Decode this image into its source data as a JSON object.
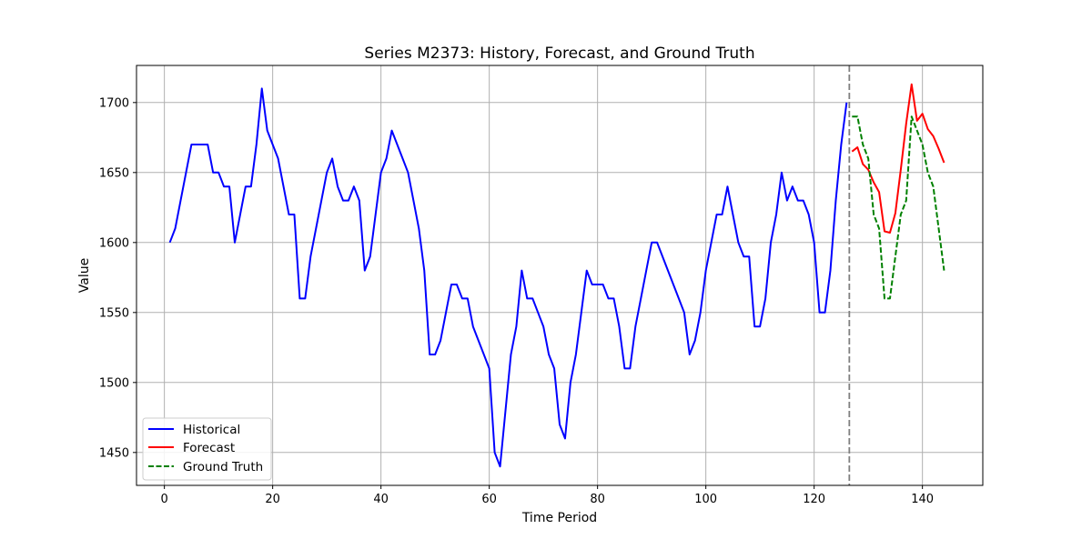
{
  "chart_data": {
    "type": "line",
    "title": "Series M2373: History, Forecast, and Ground Truth",
    "xlabel": "Time Period",
    "ylabel": "Value",
    "xlim": [
      -5.15,
      151.15
    ],
    "ylim": [
      1426.5,
      1726.5
    ],
    "xticks": [
      0,
      20,
      40,
      60,
      80,
      100,
      120,
      140
    ],
    "yticks": [
      1450,
      1500,
      1550,
      1600,
      1650,
      1700
    ],
    "grid": true,
    "legend_position": "lower-left",
    "forecast_start_x": 126.5,
    "series": [
      {
        "name": "Historical",
        "color": "#0000ff",
        "style": "solid",
        "x": [
          1,
          2,
          3,
          4,
          5,
          6,
          7,
          8,
          9,
          10,
          11,
          12,
          13,
          14,
          15,
          16,
          17,
          18,
          19,
          20,
          21,
          22,
          23,
          24,
          25,
          26,
          27,
          28,
          29,
          30,
          31,
          32,
          33,
          34,
          35,
          36,
          37,
          38,
          39,
          40,
          41,
          42,
          43,
          44,
          45,
          46,
          47,
          48,
          49,
          50,
          51,
          52,
          53,
          54,
          55,
          56,
          57,
          58,
          59,
          60,
          61,
          62,
          63,
          64,
          65,
          66,
          67,
          68,
          69,
          70,
          71,
          72,
          73,
          74,
          75,
          76,
          77,
          78,
          79,
          80,
          81,
          82,
          83,
          84,
          85,
          86,
          87,
          88,
          89,
          90,
          91,
          92,
          93,
          94,
          95,
          96,
          97,
          98,
          99,
          100,
          101,
          102,
          103,
          104,
          105,
          106,
          107,
          108,
          109,
          110,
          111,
          112,
          113,
          114,
          115,
          116,
          117,
          118,
          119,
          120,
          121,
          122,
          123,
          124,
          125,
          126
        ],
        "values": [
          1600,
          1610,
          1630,
          1650,
          1670,
          1670,
          1670,
          1670,
          1650,
          1650,
          1640,
          1640,
          1600,
          1620,
          1640,
          1640,
          1670,
          1710,
          1680,
          1670,
          1660,
          1640,
          1620,
          1620,
          1560,
          1560,
          1590,
          1610,
          1630,
          1650,
          1660,
          1640,
          1630,
          1630,
          1640,
          1630,
          1580,
          1590,
          1620,
          1650,
          1660,
          1680,
          1670,
          1660,
          1650,
          1630,
          1610,
          1580,
          1520,
          1520,
          1530,
          1550,
          1570,
          1570,
          1560,
          1560,
          1540,
          1530,
          1520,
          1510,
          1450,
          1440,
          1480,
          1520,
          1540,
          1580,
          1560,
          1560,
          1550,
          1540,
          1520,
          1510,
          1470,
          1460,
          1500,
          1520,
          1550,
          1580,
          1570,
          1570,
          1570,
          1560,
          1560,
          1540,
          1510,
          1510,
          1540,
          1560,
          1580,
          1600,
          1600,
          1590,
          1580,
          1570,
          1560,
          1550,
          1520,
          1530,
          1550,
          1580,
          1600,
          1620,
          1620,
          1640,
          1620,
          1600,
          1590,
          1590,
          1540,
          1540,
          1560,
          1600,
          1620,
          1650,
          1630,
          1640,
          1630,
          1630,
          1620,
          1600,
          1550,
          1550,
          1580,
          1630,
          1670,
          1700
        ]
      },
      {
        "name": "Forecast",
        "color": "#ff0000",
        "style": "solid",
        "x": [
          127,
          128,
          129,
          130,
          131,
          132,
          133,
          134,
          135,
          136,
          137,
          138,
          139,
          140,
          141,
          142,
          143,
          144
        ],
        "values": [
          1665,
          1668,
          1656,
          1652,
          1643,
          1636,
          1608,
          1607,
          1621,
          1652,
          1685,
          1713,
          1687,
          1692,
          1681,
          1676,
          1667,
          1657
        ]
      },
      {
        "name": "Ground Truth",
        "color": "#008000",
        "style": "dashed",
        "x": [
          127,
          128,
          129,
          130,
          131,
          132,
          133,
          134,
          135,
          136,
          137,
          138,
          139,
          140,
          141,
          142,
          143,
          144
        ],
        "values": [
          1690,
          1690,
          1670,
          1660,
          1620,
          1610,
          1560,
          1560,
          1590,
          1620,
          1630,
          1690,
          1680,
          1670,
          1650,
          1640,
          1610,
          1580
        ]
      }
    ]
  }
}
